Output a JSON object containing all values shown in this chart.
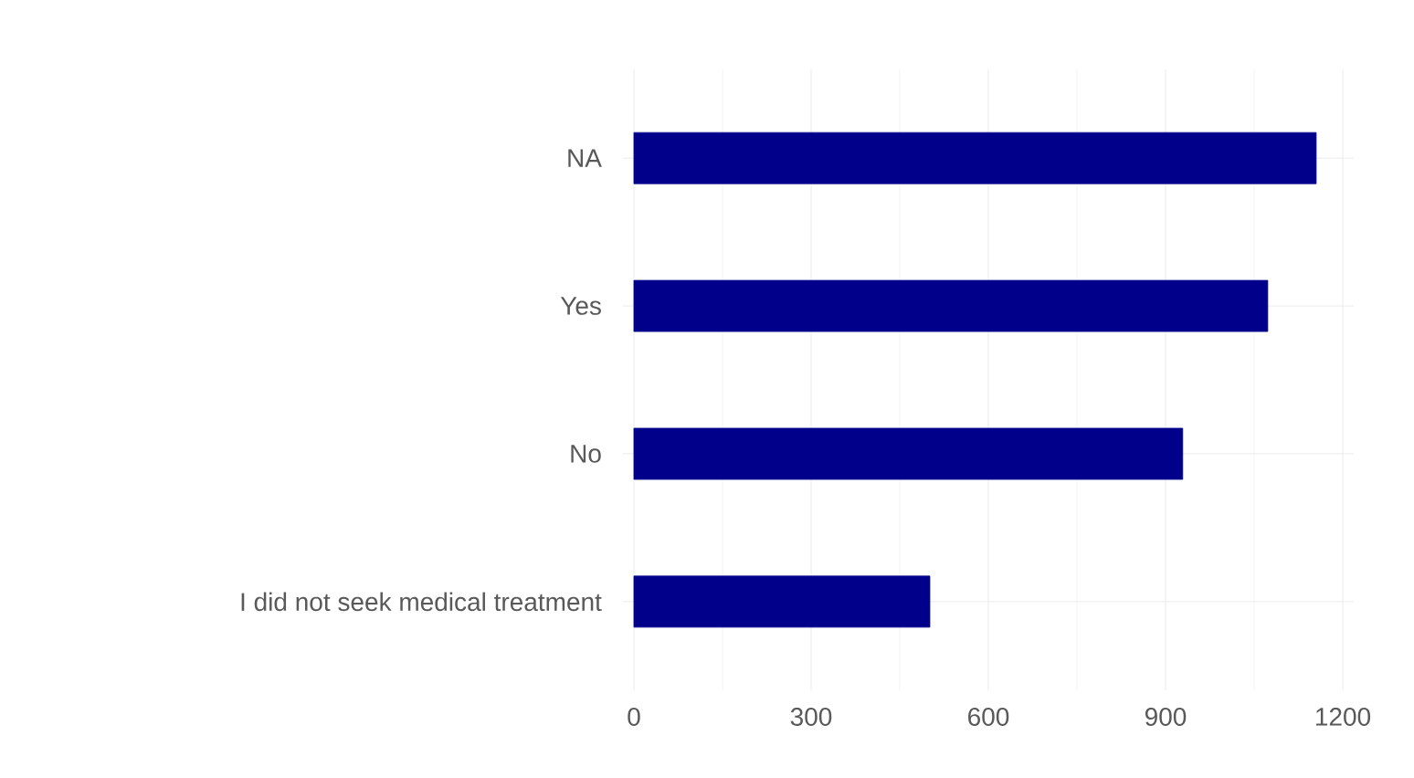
{
  "chart_data": {
    "type": "bar",
    "orientation": "horizontal",
    "categories": [
      "NA",
      "Yes",
      "No",
      "I did not seek medical treatment"
    ],
    "values": [
      1155,
      1073,
      929,
      501
    ],
    "color": "#00008b",
    "xlim": [
      0,
      1200
    ],
    "xticks": [
      0,
      300,
      600,
      900,
      1200
    ],
    "grid": true
  }
}
